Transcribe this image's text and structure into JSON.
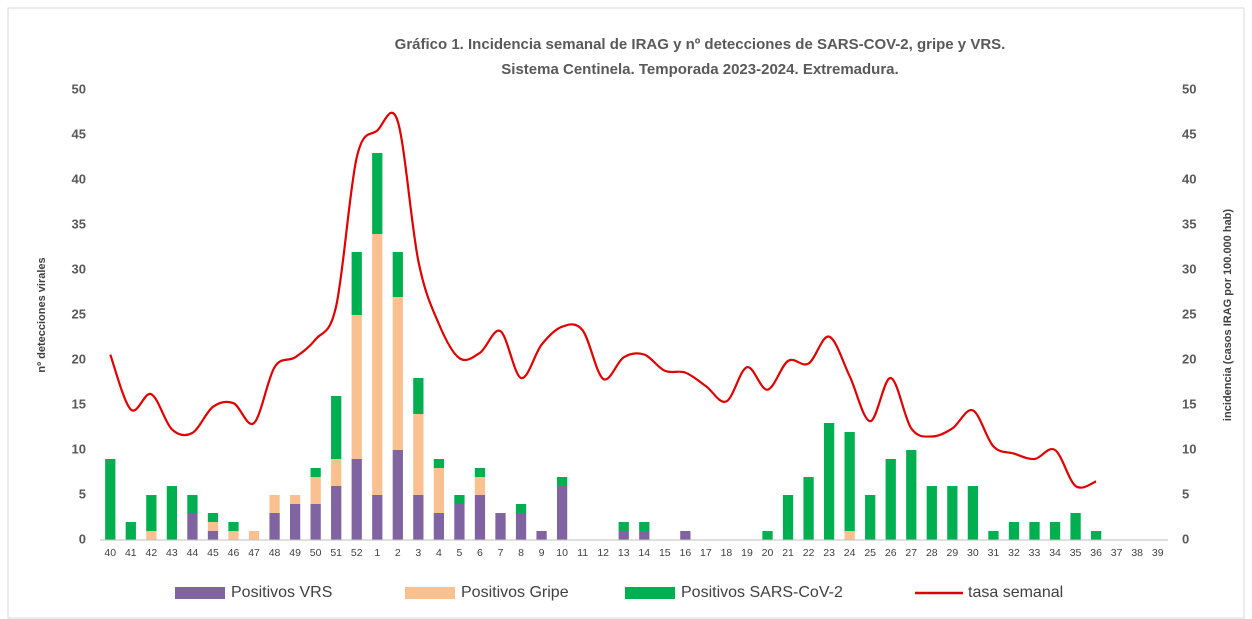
{
  "chart_data": {
    "type": "bar",
    "title": [
      "Gráfico 1. Incidencia semanal de IRAG y nº detecciones de SARS-COV-2, gripe y VRS.",
      "Sistema Centinela. Temporada 2023-2024. Extremadura."
    ],
    "ylabel": "nº detecciones virales",
    "y2label": "incidencia (casos IRAG por 100.000 hab)",
    "categories": [
      "40",
      "41",
      "42",
      "43",
      "44",
      "45",
      "46",
      "47",
      "48",
      "49",
      "50",
      "51",
      "52",
      "1",
      "2",
      "3",
      "4",
      "5",
      "6",
      "7",
      "8",
      "9",
      "10",
      "11",
      "12",
      "13",
      "14",
      "15",
      "16",
      "17",
      "18",
      "19",
      "20",
      "21",
      "22",
      "23",
      "24",
      "25",
      "26",
      "27",
      "28",
      "29",
      "30",
      "31",
      "32",
      "33",
      "34",
      "35",
      "36",
      "37",
      "38",
      "39"
    ],
    "ylim": [
      0,
      50
    ],
    "yticks": [
      0,
      5,
      10,
      15,
      20,
      25,
      30,
      35,
      40,
      45,
      50
    ],
    "y2lim": [
      0,
      50
    ],
    "y2ticks": [
      0,
      5,
      10,
      15,
      20,
      25,
      30,
      35,
      40,
      45,
      50
    ],
    "stacked": true,
    "grid": false,
    "legend": "bottom",
    "series": [
      {
        "name": "Positivos VRS",
        "color": "#8064a2",
        "type": "bar",
        "values": [
          0,
          0,
          0,
          0,
          3,
          1,
          0,
          0,
          3,
          4,
          4,
          6,
          9,
          5,
          10,
          5,
          3,
          4,
          5,
          3,
          3,
          1,
          6,
          0,
          0,
          1,
          1,
          0,
          1,
          0,
          0,
          0,
          0,
          0,
          0,
          0,
          0,
          0,
          0,
          0,
          0,
          0,
          0,
          0,
          0,
          0,
          0,
          0,
          0,
          0,
          0,
          0
        ]
      },
      {
        "name": "Positivos Gripe",
        "color": "#fac090",
        "type": "bar",
        "values": [
          0,
          0,
          1,
          0,
          0,
          1,
          1,
          1,
          2,
          1,
          3,
          3,
          16,
          29,
          17,
          9,
          5,
          0,
          2,
          0,
          0,
          0,
          0,
          0,
          0,
          0,
          0,
          0,
          0,
          0,
          0,
          0,
          0,
          0,
          0,
          0,
          1,
          0,
          0,
          0,
          0,
          0,
          0,
          0,
          0,
          0,
          0,
          0,
          0,
          0,
          0,
          0
        ]
      },
      {
        "name": "Positivos SARS-CoV-2",
        "color": "#00b050",
        "type": "bar",
        "values": [
          9,
          2,
          4,
          6,
          2,
          1,
          1,
          0,
          0,
          0,
          1,
          7,
          7,
          9,
          5,
          4,
          1,
          1,
          1,
          0,
          1,
          0,
          1,
          0,
          0,
          1,
          1,
          0,
          0,
          0,
          0,
          0,
          1,
          5,
          7,
          13,
          11,
          5,
          9,
          10,
          6,
          6,
          6,
          1,
          2,
          2,
          2,
          3,
          1,
          0,
          0,
          0
        ]
      },
      {
        "name": "tasa semanal",
        "color": "#e00000",
        "type": "line",
        "axis": "y2",
        "values": [
          20.6,
          14.5,
          16.2,
          12.3,
          11.9,
          14.8,
          15.2,
          13,
          19.2,
          20.3,
          22.3,
          26,
          42.5,
          45.5,
          46.5,
          31,
          24,
          20.2,
          20.8,
          23.2,
          18,
          21.7,
          23.7,
          23.3,
          17.9,
          20.3,
          20.6,
          18.8,
          18.6,
          17.1,
          15.4,
          19.2,
          16.7,
          19.9,
          19.6,
          22.6,
          18.2,
          13.2,
          18,
          12.4,
          11.5,
          12.4,
          14.4,
          10.4,
          9.6,
          9,
          10,
          6,
          6.5,
          null,
          null,
          null
        ]
      }
    ]
  }
}
